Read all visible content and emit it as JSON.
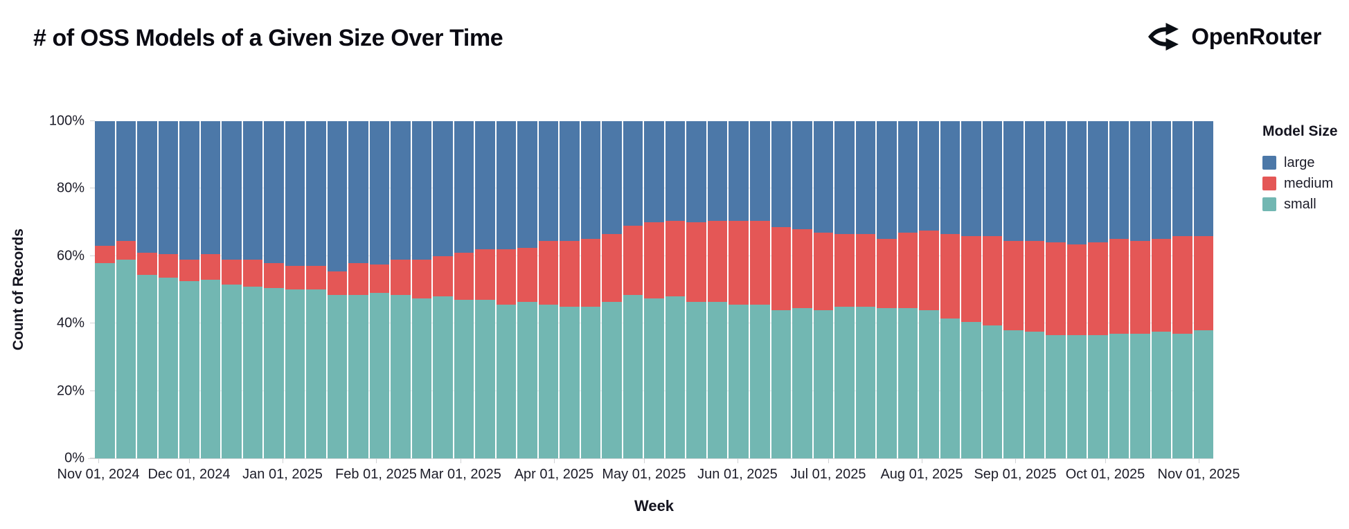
{
  "header": {
    "title": "# of OSS Models of a Given Size Over Time",
    "brand": "OpenRouter"
  },
  "chart_data": {
    "type": "bar",
    "variant": "stacked-normalized",
    "title": "# of OSS Models of a Given Size Over Time",
    "xlabel": "Week",
    "ylabel": "Count of Records",
    "ylim": [
      0,
      100
    ],
    "grid": true,
    "legend": {
      "title": "Model Size",
      "position": "right",
      "entries": [
        {
          "label": "large",
          "color": "#4c78a8"
        },
        {
          "label": "medium",
          "color": "#e45756"
        },
        {
          "label": "small",
          "color": "#72b7b2"
        }
      ]
    },
    "weeks": 53,
    "x_unit": "week index 1-53 (weekly bars, Nov 2024 through Nov 2025)",
    "y_ticks": [
      {
        "label": "0%",
        "value": 0
      },
      {
        "label": "20%",
        "value": 20
      },
      {
        "label": "40%",
        "value": 40
      },
      {
        "label": "60%",
        "value": 60
      },
      {
        "label": "80%",
        "value": 80
      },
      {
        "label": "100%",
        "value": 100
      }
    ],
    "x_ticks": [
      {
        "label": "Nov 01, 2024",
        "pos_pct": 0.31
      },
      {
        "label": "Dec 01, 2024",
        "pos_pct": 8.42
      },
      {
        "label": "Jan 01, 2025",
        "pos_pct": 16.78
      },
      {
        "label": "Feb 01, 2025",
        "pos_pct": 25.14
      },
      {
        "label": "Mar 01, 2025",
        "pos_pct": 32.69
      },
      {
        "label": "Apr 01, 2025",
        "pos_pct": 41.05
      },
      {
        "label": "May 01, 2025",
        "pos_pct": 49.1
      },
      {
        "label": "Jun 01, 2025",
        "pos_pct": 57.46
      },
      {
        "label": "Jul 01, 2025",
        "pos_pct": 65.57
      },
      {
        "label": "Aug 01, 2025",
        "pos_pct": 73.93
      },
      {
        "label": "Sep 01, 2025",
        "pos_pct": 82.29
      },
      {
        "label": "Oct 01, 2025",
        "pos_pct": 90.34
      },
      {
        "label": "Nov 01, 2025",
        "pos_pct": 98.7
      }
    ],
    "series": [
      {
        "name": "small",
        "color": "#72b7b2",
        "values": [
          58,
          59,
          54.5,
          53.5,
          52.5,
          53,
          51.5,
          51,
          50.5,
          50,
          50,
          48.5,
          48.5,
          49,
          48.5,
          47.5,
          48,
          47,
          47,
          45.5,
          46.5,
          45.5,
          45,
          45,
          46.5,
          48.5,
          47.5,
          48,
          46.5,
          46.5,
          45.5,
          45.5,
          44,
          44.5,
          44,
          45,
          45,
          44.5,
          44.5,
          44,
          41.5,
          40.5,
          39.5,
          38,
          37.5,
          36.5,
          36.5,
          36.5,
          37,
          37,
          37.5,
          37,
          38
        ]
      },
      {
        "name": "medium",
        "color": "#e45756",
        "values": [
          5,
          5.5,
          6.5,
          7,
          6.5,
          7.5,
          7.5,
          8,
          7.5,
          7,
          7,
          7,
          9.5,
          8.5,
          10.5,
          11.5,
          12,
          14,
          15,
          16.5,
          16,
          19,
          19.5,
          20,
          20,
          20.5,
          22.5,
          22.5,
          23.5,
          24,
          25,
          25,
          24.5,
          23.5,
          23,
          21.5,
          21.5,
          20.5,
          22.5,
          23.5,
          25,
          25.5,
          26.5,
          26.5,
          27,
          27.5,
          27,
          27.5,
          28,
          27.5,
          27.5,
          29,
          28
        ]
      },
      {
        "name": "large",
        "color": "#4c78a8",
        "values": [
          37,
          35.5,
          39,
          39.5,
          41,
          39.5,
          41,
          41,
          42,
          43,
          43,
          44.5,
          42,
          42.5,
          41,
          41,
          40,
          39,
          38,
          38,
          37.5,
          35.5,
          35.5,
          35,
          33.5,
          31,
          30,
          29.5,
          30,
          29.5,
          29.5,
          29.5,
          31.5,
          32,
          33,
          33.5,
          33.5,
          35,
          33,
          32.5,
          33.5,
          34,
          34,
          35.5,
          35.5,
          36,
          36.5,
          36,
          35,
          35.5,
          35,
          34,
          34
        ]
      }
    ]
  }
}
